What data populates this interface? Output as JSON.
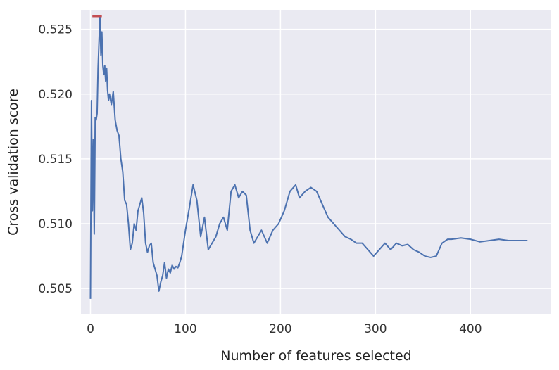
{
  "chart_data": {
    "type": "line",
    "title": "",
    "xlabel": "Number of features selected",
    "ylabel": "Cross validation score",
    "xlim": [
      -10,
      485
    ],
    "ylim": [
      0.503,
      0.5265
    ],
    "grid": true,
    "x_ticks": [
      0,
      100,
      200,
      300,
      400
    ],
    "y_ticks": [
      0.505,
      0.51,
      0.515,
      0.52,
      0.525
    ],
    "x_tick_labels": [
      "0",
      "100",
      "200",
      "300",
      "400"
    ],
    "y_tick_labels": [
      "0.505",
      "0.510",
      "0.515",
      "0.520",
      "0.525"
    ],
    "colors": {
      "background": "#eaeaf2",
      "grid": "#ffffff",
      "line": "#4c72b0",
      "max_marker": "#c44e52"
    },
    "series": [
      {
        "color": "#4c72b0",
        "x": [
          0,
          1,
          2,
          3,
          4,
          5,
          6,
          7,
          8,
          9,
          10,
          11,
          12,
          13,
          14,
          15,
          16,
          17,
          18,
          19,
          20,
          22,
          24,
          26,
          28,
          30,
          32,
          34,
          36,
          38,
          40,
          42,
          44,
          46,
          48,
          50,
          52,
          54,
          56,
          58,
          60,
          62,
          64,
          66,
          68,
          70,
          72,
          74,
          76,
          78,
          80,
          82,
          84,
          86,
          88,
          90,
          92,
          94,
          96,
          98,
          100,
          104,
          108,
          112,
          116,
          120,
          124,
          128,
          132,
          136,
          140,
          144,
          148,
          152,
          156,
          160,
          164,
          168,
          172,
          176,
          180,
          186,
          192,
          198,
          204,
          210,
          216,
          220,
          226,
          232,
          238,
          244,
          250,
          256,
          262,
          268,
          274,
          280,
          286,
          292,
          298,
          304,
          310,
          316,
          322,
          328,
          334,
          340,
          346,
          352,
          358,
          364,
          370,
          376,
          380,
          390,
          400,
          410,
          420,
          430,
          440,
          450,
          460
        ],
        "y": [
          0.5042,
          0.5195,
          0.511,
          0.5165,
          0.5092,
          0.5182,
          0.518,
          0.5185,
          0.522,
          0.524,
          0.526,
          0.523,
          0.5248,
          0.5222,
          0.5215,
          0.5222,
          0.521,
          0.522,
          0.5203,
          0.5195,
          0.52,
          0.5192,
          0.5202,
          0.518,
          0.5172,
          0.5168,
          0.515,
          0.514,
          0.5118,
          0.5115,
          0.51,
          0.508,
          0.5085,
          0.51,
          0.5095,
          0.511,
          0.5115,
          0.512,
          0.5108,
          0.5085,
          0.5078,
          0.5083,
          0.5085,
          0.507,
          0.5065,
          0.506,
          0.5048,
          0.5055,
          0.506,
          0.507,
          0.5058,
          0.5065,
          0.5062,
          0.5068,
          0.5065,
          0.5067,
          0.5066,
          0.507,
          0.5075,
          0.5085,
          0.5095,
          0.5112,
          0.513,
          0.5118,
          0.509,
          0.5105,
          0.508,
          0.5085,
          0.509,
          0.51,
          0.5105,
          0.5095,
          0.5125,
          0.513,
          0.512,
          0.5125,
          0.5122,
          0.5095,
          0.5085,
          0.509,
          0.5095,
          0.5085,
          0.5095,
          0.51,
          0.511,
          0.5125,
          0.513,
          0.512,
          0.5125,
          0.5128,
          0.5125,
          0.5115,
          0.5105,
          0.51,
          0.5095,
          0.509,
          0.5088,
          0.5085,
          0.5085,
          0.508,
          0.5075,
          0.508,
          0.5085,
          0.508,
          0.5085,
          0.5083,
          0.5084,
          0.508,
          0.5078,
          0.5075,
          0.5074,
          0.5075,
          0.5085,
          0.5088,
          0.5088,
          0.5089,
          0.5088,
          0.5086,
          0.5087,
          0.5088,
          0.5087,
          0.5087,
          0.5087
        ]
      }
    ],
    "max_marker": {
      "x_start": 2,
      "x_end": 12,
      "y": 0.526
    }
  }
}
